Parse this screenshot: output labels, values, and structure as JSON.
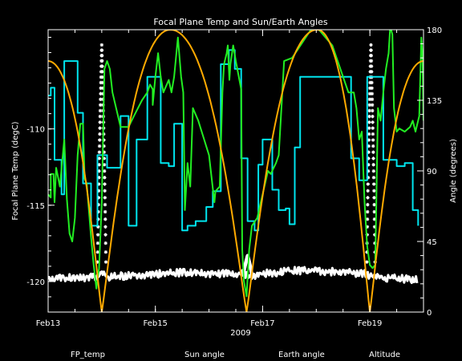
{
  "chart_data": {
    "type": "line",
    "title": "Focal Plane Temp and Sun/Earth Angles",
    "xlabel": "2009",
    "ylabel_left": "Focal Plane Temp (degC)",
    "ylabel_right": "Angle (degrees)",
    "xlim": [
      0,
      7.0
    ],
    "ylim_left": [
      -122,
      -103.5
    ],
    "ylim_right": [
      0,
      180
    ],
    "x_ticks": [
      {
        "x": 0,
        "label": "Feb13"
      },
      {
        "x": 2,
        "label": "Feb15"
      },
      {
        "x": 4,
        "label": "Feb17"
      },
      {
        "x": 6,
        "label": "Feb19"
      }
    ],
    "x_minor_step": 0.5,
    "y_left_ticks": [
      {
        "y": -110,
        "label": "-110"
      },
      {
        "y": -115,
        "label": "-115"
      },
      {
        "y": -120,
        "label": "-120"
      }
    ],
    "y_left_minor_step": 1,
    "y_right_ticks": [
      {
        "y": 0,
        "label": "0"
      },
      {
        "y": 45,
        "label": "45"
      },
      {
        "y": 90,
        "label": "90"
      },
      {
        "y": 135,
        "label": "135"
      },
      {
        "y": 180,
        "label": "180"
      }
    ],
    "y_right_minor_step": 9,
    "series": [
      {
        "name": "FP_temp",
        "color": "#ffffff",
        "axis": "left",
        "marker": "asterisk",
        "baseline": [
          [
            0,
            -119.8
          ],
          [
            0.9,
            -119.7
          ],
          [
            0.94,
            -119.6
          ],
          [
            1.0,
            -119.5
          ],
          [
            1.06,
            -119.6
          ],
          [
            1.1,
            -119.7
          ],
          [
            2.0,
            -119.5
          ],
          [
            2.5,
            -119.4
          ],
          [
            3.0,
            -119.5
          ],
          [
            3.6,
            -119.5
          ],
          [
            3.64,
            -119.4
          ],
          [
            3.68,
            -119.6
          ],
          [
            3.72,
            -119.4
          ],
          [
            3.76,
            -119.6
          ],
          [
            3.82,
            -119.7
          ],
          [
            4.0,
            -119.5
          ],
          [
            4.5,
            -119.3
          ],
          [
            5.0,
            -119.3
          ],
          [
            5.5,
            -119.4
          ],
          [
            5.9,
            -119.5
          ],
          [
            6.0,
            -119.6
          ],
          [
            6.06,
            -119.5
          ],
          [
            6.1,
            -119.7
          ],
          [
            6.5,
            -119.8
          ],
          [
            6.9,
            -119.9
          ]
        ],
        "spikes": [
          {
            "x_start": 0.92,
            "x_end": 1.08,
            "y_peak": -104.5
          },
          {
            "x_start": 3.64,
            "x_end": 3.8,
            "y_peak": -118.3
          },
          {
            "x_start": 5.94,
            "x_end": 6.1,
            "y_peak": -104.5
          }
        ]
      },
      {
        "name": "Sun angle",
        "color": "#00e5ee",
        "axis": "right",
        "points": [
          [
            0,
            138
          ],
          [
            0.05,
            138
          ],
          [
            0.05,
            143
          ],
          [
            0.12,
            143
          ],
          [
            0.12,
            97
          ],
          [
            0.25,
            97
          ],
          [
            0.25,
            75
          ],
          [
            0.3,
            75
          ],
          [
            0.3,
            160
          ],
          [
            0.55,
            160
          ],
          [
            0.55,
            127
          ],
          [
            0.65,
            127
          ],
          [
            0.65,
            82
          ],
          [
            0.8,
            82
          ],
          [
            0.8,
            55
          ],
          [
            0.92,
            55
          ],
          [
            0.92,
            100
          ],
          [
            1.1,
            100
          ],
          [
            1.1,
            92
          ],
          [
            1.2,
            92
          ],
          [
            1.2,
            92
          ],
          [
            1.35,
            92
          ],
          [
            1.35,
            125
          ],
          [
            1.5,
            125
          ],
          [
            1.5,
            55
          ],
          [
            1.65,
            55
          ],
          [
            1.65,
            110
          ],
          [
            1.85,
            110
          ],
          [
            1.85,
            150
          ],
          [
            2.1,
            150
          ],
          [
            2.1,
            95
          ],
          [
            2.25,
            95
          ],
          [
            2.25,
            93
          ],
          [
            2.35,
            93
          ],
          [
            2.35,
            120
          ],
          [
            2.5,
            120
          ],
          [
            2.5,
            52
          ],
          [
            2.6,
            52
          ],
          [
            2.6,
            55
          ],
          [
            2.75,
            55
          ],
          [
            2.75,
            58
          ],
          [
            2.95,
            58
          ],
          [
            2.95,
            67
          ],
          [
            3.07,
            67
          ],
          [
            3.07,
            77
          ],
          [
            3.22,
            77
          ],
          [
            3.22,
            158
          ],
          [
            3.37,
            158
          ],
          [
            3.37,
            167
          ],
          [
            3.48,
            167
          ],
          [
            3.48,
            155
          ],
          [
            3.6,
            155
          ],
          [
            3.6,
            98
          ],
          [
            3.72,
            98
          ],
          [
            3.72,
            58
          ],
          [
            3.85,
            58
          ],
          [
            3.85,
            52
          ],
          [
            3.92,
            52
          ],
          [
            3.92,
            94
          ],
          [
            4.0,
            94
          ],
          [
            4.0,
            110
          ],
          [
            4.18,
            110
          ],
          [
            4.18,
            78
          ],
          [
            4.3,
            78
          ],
          [
            4.3,
            65
          ],
          [
            4.43,
            65
          ],
          [
            4.43,
            66
          ],
          [
            4.5,
            66
          ],
          [
            4.5,
            56
          ],
          [
            4.6,
            56
          ],
          [
            4.6,
            105
          ],
          [
            4.7,
            105
          ],
          [
            4.7,
            150
          ],
          [
            5.65,
            150
          ],
          [
            5.65,
            98
          ],
          [
            5.8,
            98
          ],
          [
            5.8,
            84
          ],
          [
            5.95,
            84
          ],
          [
            5.95,
            150
          ],
          [
            6.25,
            150
          ],
          [
            6.25,
            97
          ],
          [
            6.5,
            97
          ],
          [
            6.5,
            93
          ],
          [
            6.65,
            93
          ],
          [
            6.65,
            95
          ],
          [
            6.8,
            95
          ],
          [
            6.8,
            65
          ],
          [
            6.9,
            65
          ],
          [
            6.9,
            55
          ]
        ]
      },
      {
        "name": "Earth angle",
        "color": "#22ee22",
        "axis": "right",
        "points": [
          [
            0,
            75
          ],
          [
            0.05,
            73
          ],
          [
            0.05,
            88
          ],
          [
            0.1,
            88
          ],
          [
            0.12,
            70
          ],
          [
            0.15,
            92
          ],
          [
            0.22,
            80
          ],
          [
            0.3,
            110
          ],
          [
            0.35,
            72
          ],
          [
            0.4,
            50
          ],
          [
            0.45,
            45
          ],
          [
            0.5,
            60
          ],
          [
            0.55,
            100
          ],
          [
            0.6,
            120
          ],
          [
            0.65,
            120
          ],
          [
            0.68,
            85
          ],
          [
            0.72,
            82
          ],
          [
            0.8,
            48
          ],
          [
            0.85,
            30
          ],
          [
            0.9,
            15
          ],
          [
            0.95,
            28
          ],
          [
            1.0,
            70
          ],
          [
            1.05,
            155
          ],
          [
            1.1,
            160
          ],
          [
            1.15,
            155
          ],
          [
            1.2,
            140
          ],
          [
            1.35,
            118
          ],
          [
            1.5,
            118
          ],
          [
            1.6,
            125
          ],
          [
            1.75,
            135
          ],
          [
            1.85,
            140
          ],
          [
            1.9,
            145
          ],
          [
            1.95,
            142
          ],
          [
            1.95,
            132
          ],
          [
            2.0,
            150
          ],
          [
            2.05,
            165
          ],
          [
            2.1,
            150
          ],
          [
            2.15,
            140
          ],
          [
            2.25,
            148
          ],
          [
            2.3,
            140
          ],
          [
            2.35,
            150
          ],
          [
            2.42,
            175
          ],
          [
            2.48,
            150
          ],
          [
            2.52,
            140
          ],
          [
            2.55,
            65
          ],
          [
            2.6,
            95
          ],
          [
            2.65,
            80
          ],
          [
            2.7,
            130
          ],
          [
            2.8,
            122
          ],
          [
            3.0,
            100
          ],
          [
            3.1,
            70
          ],
          [
            3.12,
            77
          ],
          [
            3.2,
            80
          ],
          [
            3.25,
            140
          ],
          [
            3.28,
            158
          ],
          [
            3.33,
            165
          ],
          [
            3.35,
            170
          ],
          [
            3.38,
            148
          ],
          [
            3.4,
            158
          ],
          [
            3.45,
            170
          ],
          [
            3.5,
            160
          ],
          [
            3.6,
            142
          ],
          [
            3.62,
            40
          ],
          [
            3.65,
            20
          ],
          [
            3.7,
            10
          ],
          [
            3.75,
            40
          ],
          [
            3.8,
            55
          ],
          [
            3.9,
            60
          ],
          [
            4.0,
            75
          ],
          [
            4.1,
            90
          ],
          [
            4.15,
            88
          ],
          [
            4.25,
            95
          ],
          [
            4.3,
            100
          ],
          [
            4.4,
            160
          ],
          [
            4.55,
            162
          ],
          [
            4.9,
            180
          ],
          [
            5.05,
            180
          ],
          [
            5.3,
            170
          ],
          [
            5.5,
            150
          ],
          [
            5.6,
            140
          ],
          [
            5.7,
            140
          ],
          [
            5.75,
            130
          ],
          [
            5.8,
            110
          ],
          [
            5.85,
            115
          ],
          [
            5.9,
            70
          ],
          [
            5.95,
            42
          ],
          [
            6.0,
            30
          ],
          [
            6.05,
            28
          ],
          [
            6.1,
            30
          ],
          [
            6.15,
            130
          ],
          [
            6.2,
            122
          ],
          [
            6.25,
            140
          ],
          [
            6.3,
            155
          ],
          [
            6.35,
            165
          ],
          [
            6.38,
            182
          ],
          [
            6.42,
            177
          ],
          [
            6.45,
            130
          ],
          [
            6.5,
            115
          ],
          [
            6.55,
            117
          ],
          [
            6.65,
            115
          ],
          [
            6.75,
            118
          ],
          [
            6.8,
            122
          ],
          [
            6.85,
            115
          ],
          [
            6.92,
            125
          ],
          [
            6.96,
            175
          ],
          [
            6.98,
            165
          ],
          [
            7.0,
            122
          ]
        ]
      },
      {
        "name": "Altitude",
        "color": "#ffaa00",
        "axis": "right",
        "periodic": {
          "min_x": [
            1.0,
            3.7,
            6.0
          ],
          "max_x": [
            2.28,
            5.02
          ],
          "y_min": 0,
          "y_max": 180,
          "start_y": 160,
          "end_y": 160
        }
      }
    ],
    "legend_position": "bottom",
    "grid": false
  }
}
